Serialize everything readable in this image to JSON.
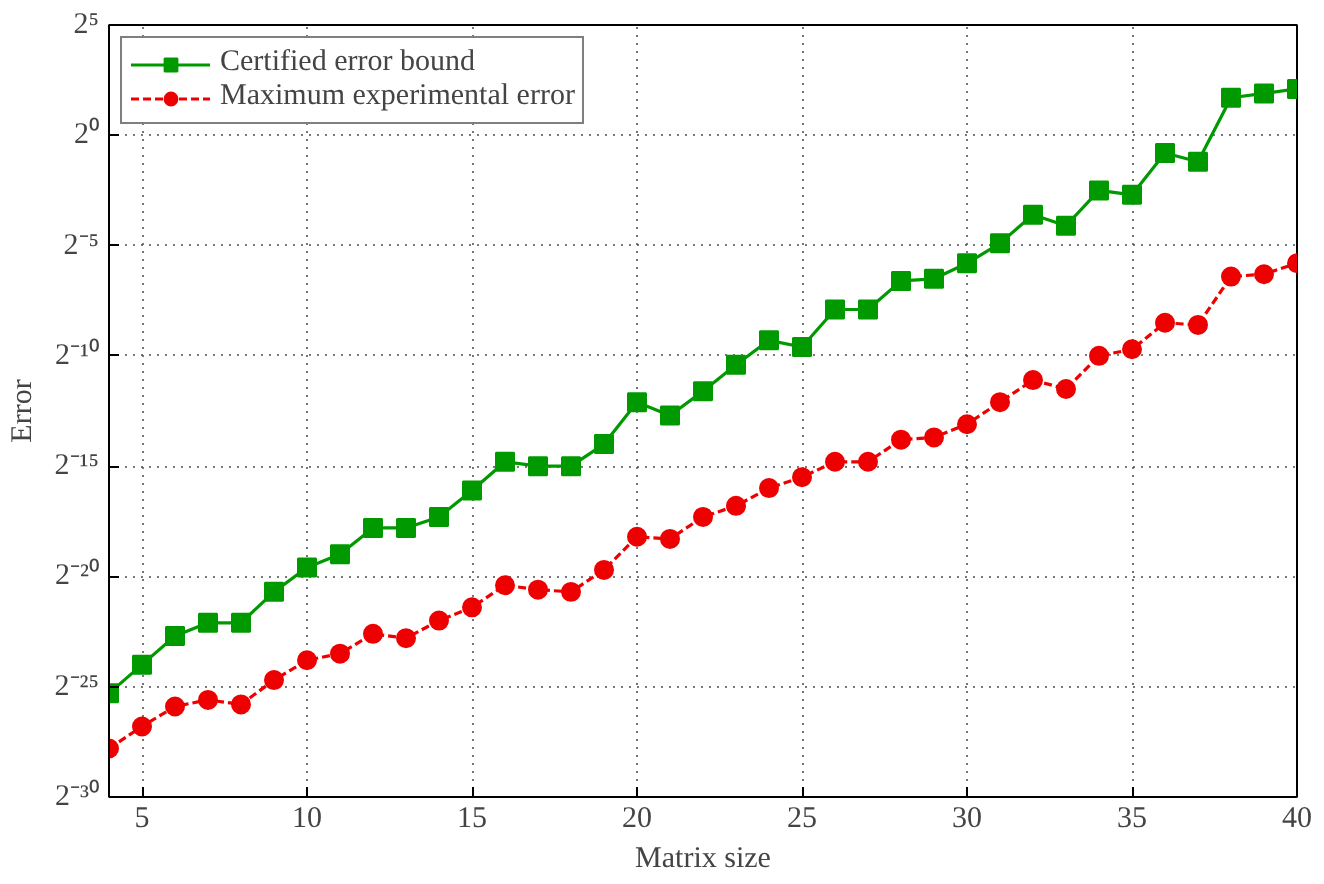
{
  "chart_data": {
    "type": "line",
    "xlabel": "Matrix size",
    "ylabel": "Error",
    "log": "y",
    "x": [
      4,
      5,
      6,
      7,
      8,
      9,
      10,
      11,
      12,
      13,
      14,
      15,
      16,
      17,
      18,
      19,
      20,
      21,
      22,
      23,
      24,
      25,
      26,
      27,
      28,
      29,
      30,
      31,
      32,
      33,
      34,
      35,
      36,
      37,
      38,
      39,
      40
    ],
    "series": [
      {
        "name": "Certified error bound",
        "color": "#009900",
        "marker": "square",
        "line_style": "solid",
        "values": [
          2.42e-08,
          5.96e-08,
          1.47e-07,
          2.22e-07,
          2.22e-07,
          5.87e-07,
          1.26e-06,
          1.91e-06,
          4.38e-06,
          4.38e-06,
          6.19e-06,
          1.42e-05,
          3.5e-05,
          3.05e-05,
          3.05e-05,
          6.1e-05,
          0.000228,
          0.00015,
          0.000322,
          0.00074,
          0.00159,
          0.00129,
          0.00419,
          0.00419,
          0.0103,
          0.011,
          0.0179,
          0.0335,
          0.0825,
          0.0583,
          0.177,
          0.154,
          0.574,
          0.435,
          3.25,
          3.73,
          4.29
        ]
      },
      {
        "name": "Maximum experimental error",
        "color": "#ee0000",
        "marker": "circle",
        "line_style": "dashed",
        "values": [
          4.28e-09,
          8.55e-09,
          1.6e-08,
          1.97e-08,
          1.71e-08,
          3.67e-08,
          6.84e-08,
          8.43e-08,
          1.57e-07,
          1.37e-07,
          2.38e-07,
          3.61e-07,
          7.23e-07,
          6.29e-07,
          5.87e-07,
          1.17e-06,
          3.32e-06,
          3.1e-06,
          6.19e-06,
          8.76e-06,
          1.53e-05,
          2.16e-05,
          3.5e-05,
          3.5e-05,
          7.01e-05,
          7.52e-05,
          0.000114,
          0.000228,
          0.000456,
          0.000345,
          0.000977,
          0.0012,
          0.00276,
          0.00258,
          0.0118,
          0.0127,
          0.0179
        ]
      }
    ],
    "xlim": [
      4,
      40
    ],
    "xticks": [
      5,
      10,
      15,
      20,
      25,
      30,
      35,
      40
    ],
    "ylim": [
      9.313225746154785e-10,
      32
    ],
    "yticks": [
      {
        "value": 9.313225746154785e-10,
        "label": "2⁻³⁰"
      },
      {
        "value": 2.9802322387695312e-08,
        "label": "2⁻²⁵"
      },
      {
        "value": 9.5367431640625e-07,
        "label": "2⁻²⁰"
      },
      {
        "value": 3.0517578125e-05,
        "label": "2⁻¹⁵"
      },
      {
        "value": 0.0009765625,
        "label": "2⁻¹⁰"
      },
      {
        "value": 0.03125,
        "label": "2⁻⁵"
      },
      {
        "value": 1,
        "label": "2⁰"
      },
      {
        "value": 32,
        "label": "2⁵"
      }
    ],
    "grid": true,
    "legend": "top left"
  }
}
